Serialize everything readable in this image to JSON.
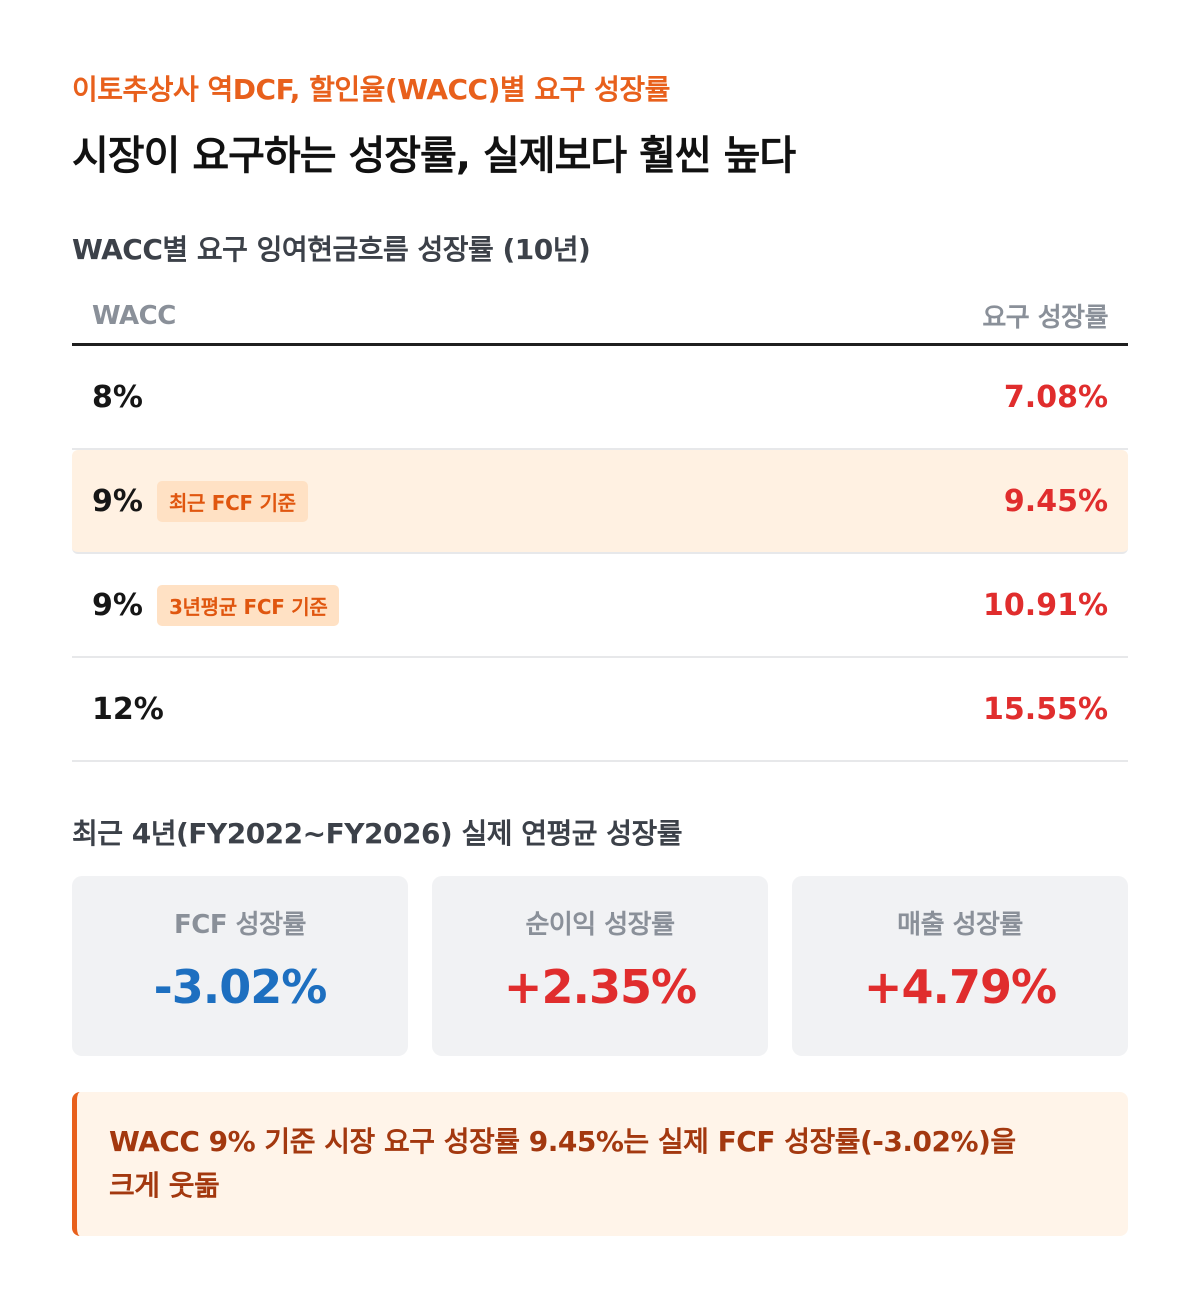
{
  "header": {
    "eyebrow": "이토추상사 역DCF, 할인율(WACC)별 요구 성장률",
    "headline": "시장이 요구하는 성장률, 실제보다 훨씬 높다"
  },
  "required_growth": {
    "title": "WACC별 요구 잉여현금흐름 성장률 (10년)",
    "columns": [
      "WACC",
      "요구 성장률"
    ],
    "rows": [
      {
        "wacc": "8%",
        "tag": "",
        "rate": "7.08%",
        "highlighted": false
      },
      {
        "wacc": "9%",
        "tag": "최근 FCF 기준",
        "rate": "9.45%",
        "highlighted": true
      },
      {
        "wacc": "9%",
        "tag": "3년평균 FCF 기준",
        "rate": "10.91%",
        "highlighted": false
      },
      {
        "wacc": "12%",
        "tag": "",
        "rate": "15.55%",
        "highlighted": false
      }
    ]
  },
  "actual_growth": {
    "title": "최근 4년(FY2022~FY2026) 실제 연평균 성장률",
    "cards": [
      {
        "label": "FCF 성장률",
        "value": "-3.02%",
        "tone": "negative"
      },
      {
        "label": "순이익 성장률",
        "value": "+2.35%",
        "tone": "positive"
      },
      {
        "label": "매출 성장률",
        "value": "+4.79%",
        "tone": "positive"
      }
    ]
  },
  "callout": {
    "line1": "WACC 9% 기준 시장 요구 성장률 9.45%는 실제 FCF 성장률(-3.02%)을",
    "line2": "크게 웃돎"
  },
  "colors": {
    "accent": "#e8601c",
    "negative_value": "#1d6fc0",
    "positive_value": "#e02d2d",
    "highlight_row": "#fff1e2",
    "callout_bg": "#fff4e9"
  }
}
